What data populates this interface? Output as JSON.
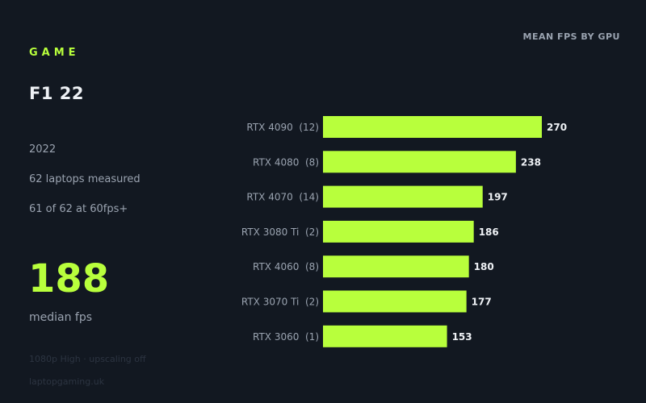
{
  "sidebar": {
    "section_label": "GAME",
    "game_title": "F1 22",
    "year": "2022",
    "laptops_measured": "62 laptops measured",
    "pass_rate": "61 of 62 at 60fps+",
    "median_value": "188",
    "median_label": "median fps",
    "settings": "1080p High · upscaling off",
    "source": "laptopgaming.uk"
  },
  "colors": {
    "background": "#121821",
    "accent": "#b8ff3c",
    "muted_text": "#9aa3b0",
    "value_text": "#eef1f5"
  },
  "chart_data": {
    "type": "bar",
    "orientation": "horizontal",
    "title": "MEAN FPS BY GPU",
    "categories": [
      "RTX 4090",
      "RTX 4080",
      "RTX 4070",
      "RTX 3080 Ti",
      "RTX 4060",
      "RTX 3070 Ti",
      "RTX 3060"
    ],
    "sample_counts": [
      12,
      8,
      14,
      2,
      8,
      2,
      1
    ],
    "category_labels": [
      "RTX 4090  (12)",
      "RTX 4080  (8)",
      "RTX 4070  (14)",
      "RTX 3080 Ti  (2)",
      "RTX 4060  (8)",
      "RTX 3070 Ti  (2)",
      "RTX 3060  (1)"
    ],
    "values": [
      270,
      238,
      197,
      186,
      180,
      177,
      153
    ],
    "xlim": [
      0,
      270
    ],
    "grid": false,
    "legend": "none"
  }
}
